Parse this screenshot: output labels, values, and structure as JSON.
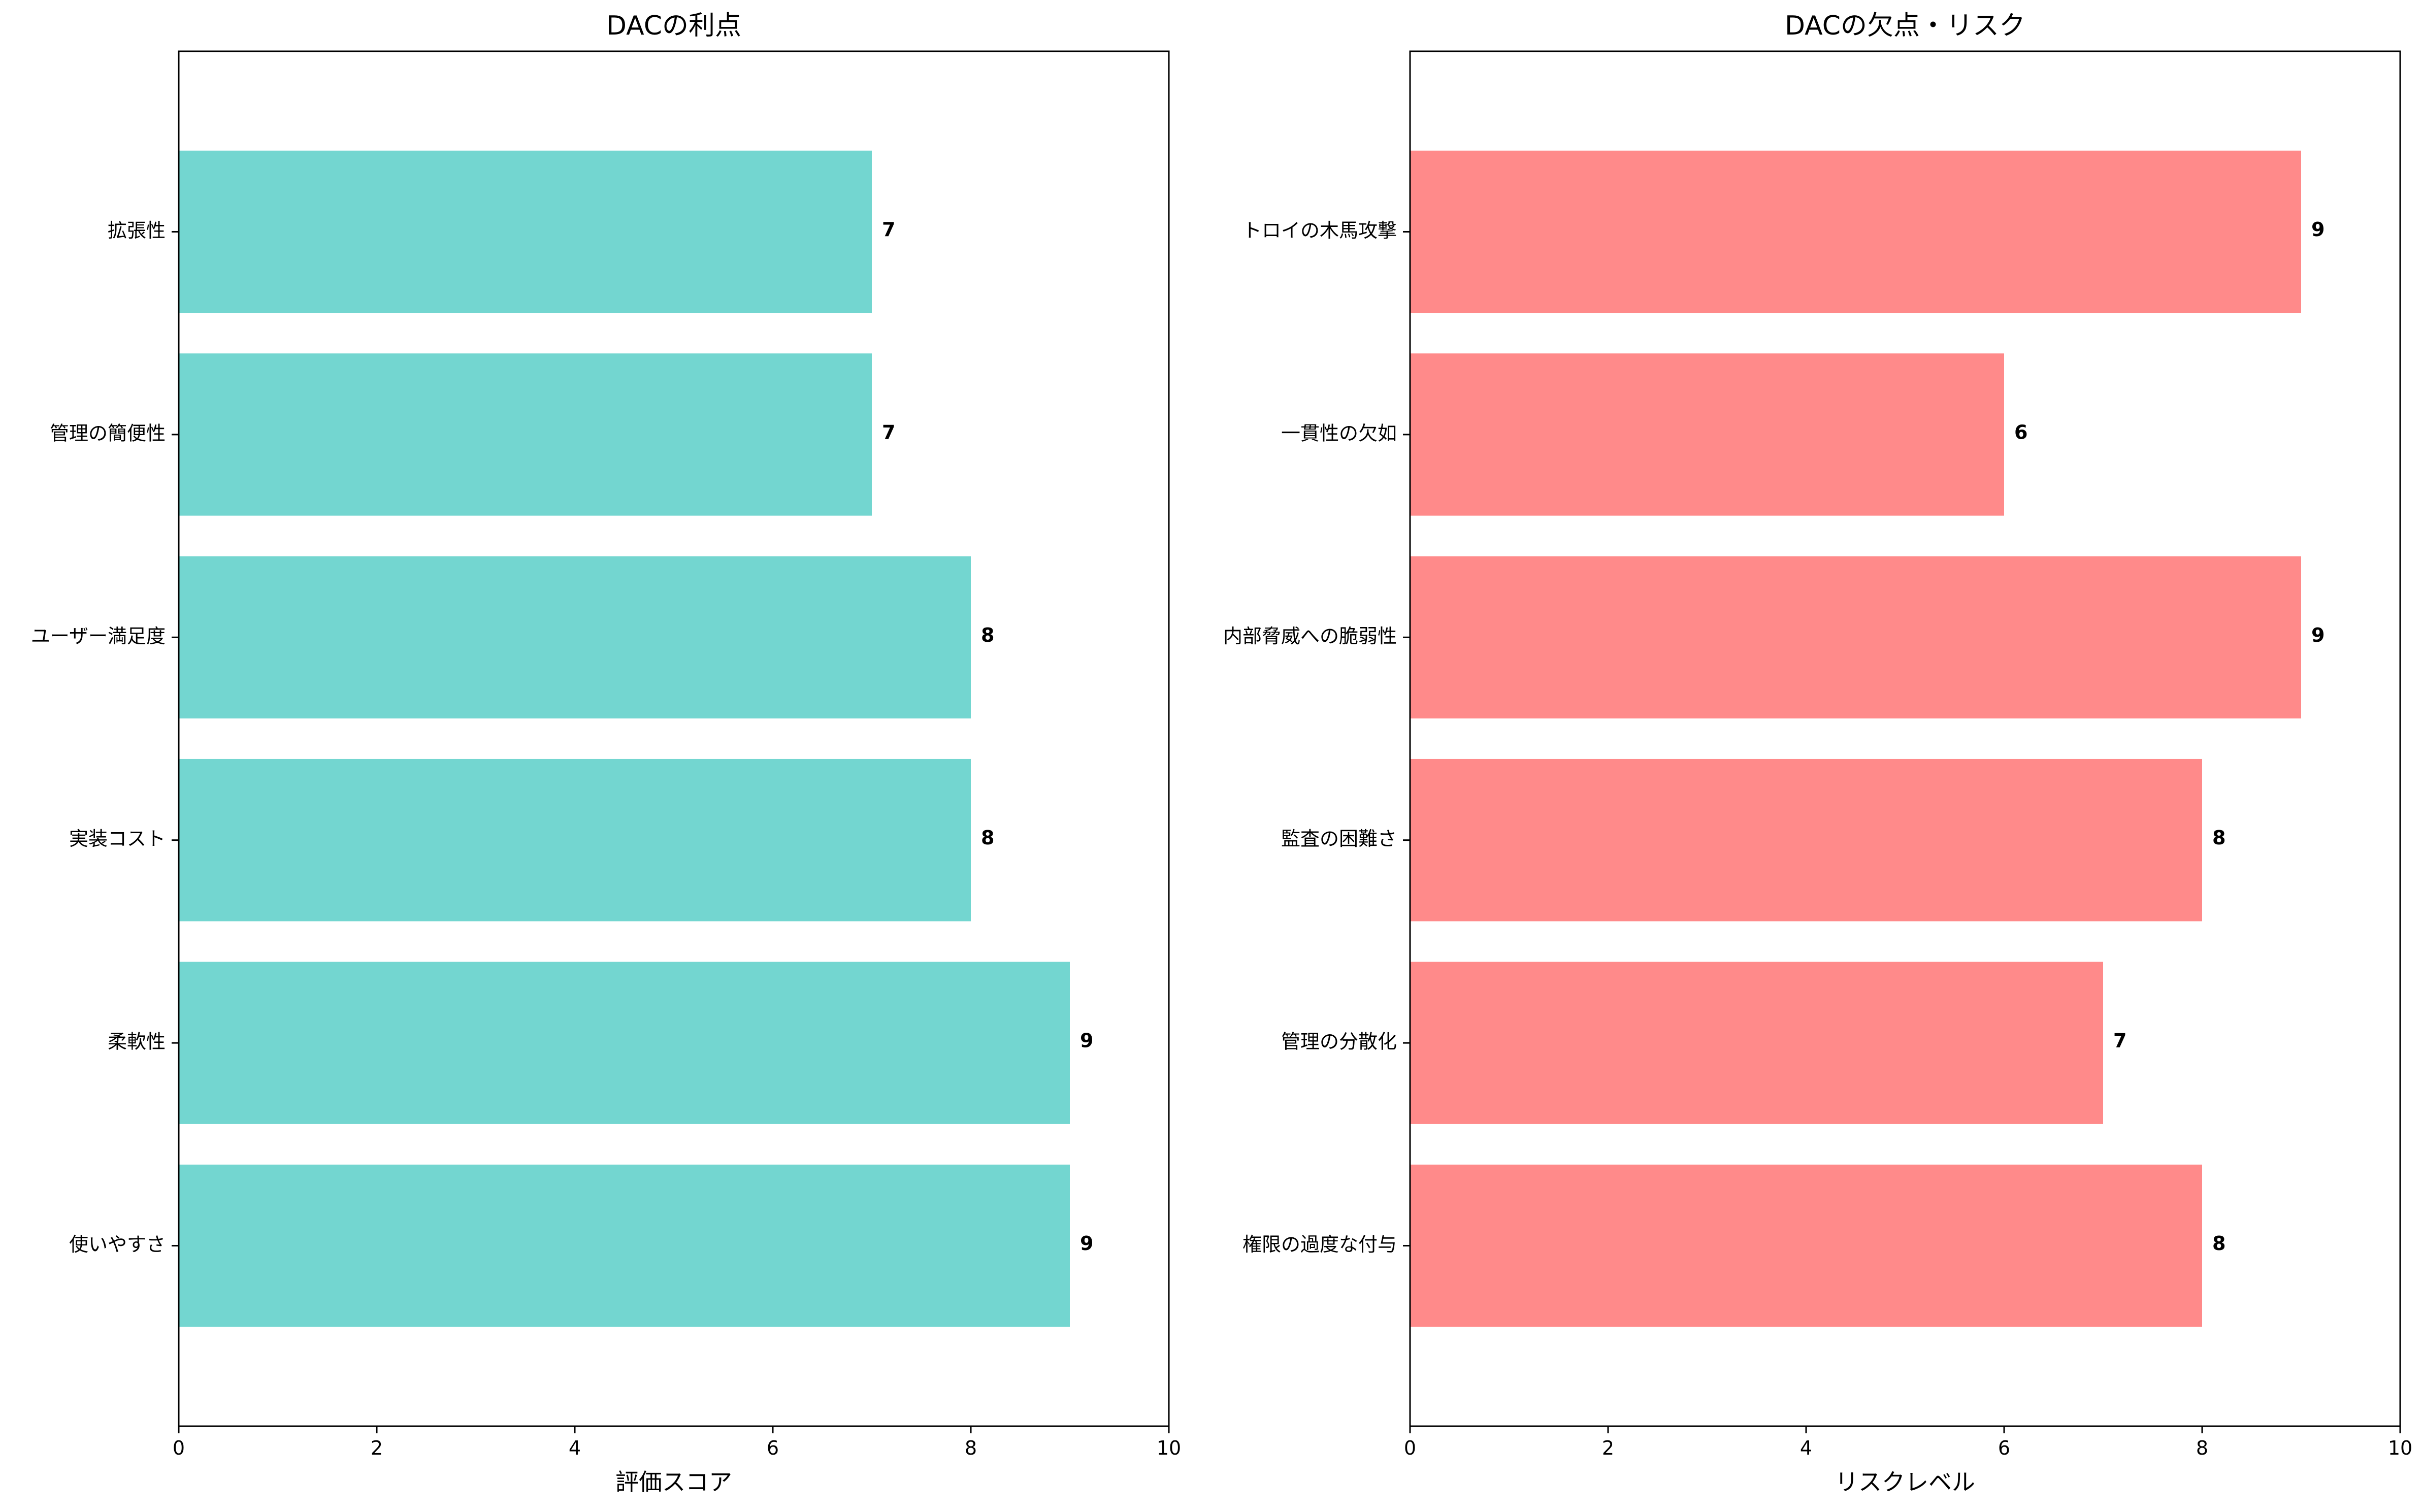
{
  "chart_data": [
    {
      "type": "bar",
      "orientation": "horizontal",
      "title": "DACの利点",
      "xlabel": "評価スコア",
      "ylabel": "",
      "xlim": [
        0,
        10
      ],
      "xticks": [
        "0",
        "2",
        "4",
        "6",
        "8",
        "10"
      ],
      "categories": [
        "使いやすさ",
        "柔軟性",
        "実装コスト",
        "ユーザー満足度",
        "管理の簡便性",
        "拡張性"
      ],
      "values": [
        9,
        9,
        8,
        8,
        7,
        7
      ],
      "value_labels": [
        "9",
        "9",
        "8",
        "8",
        "7",
        "7"
      ],
      "color": "#73D6D0",
      "grid": false,
      "legend": "none"
    },
    {
      "type": "bar",
      "orientation": "horizontal",
      "title": "DACの欠点・リスク",
      "xlabel": "リスクレベル",
      "ylabel": "",
      "xlim": [
        0,
        10
      ],
      "xticks": [
        "0",
        "2",
        "4",
        "6",
        "8",
        "10"
      ],
      "categories": [
        "権限の過度な付与",
        "管理の分散化",
        "監査の困難さ",
        "内部脅威への脆弱性",
        "一貫性の欠如",
        "トロイの木馬攻撃"
      ],
      "values": [
        8,
        7,
        8,
        9,
        6,
        9
      ],
      "value_labels": [
        "8",
        "7",
        "8",
        "9",
        "6",
        "9"
      ],
      "color": "#FF8A8A",
      "grid": false,
      "legend": "none"
    }
  ]
}
